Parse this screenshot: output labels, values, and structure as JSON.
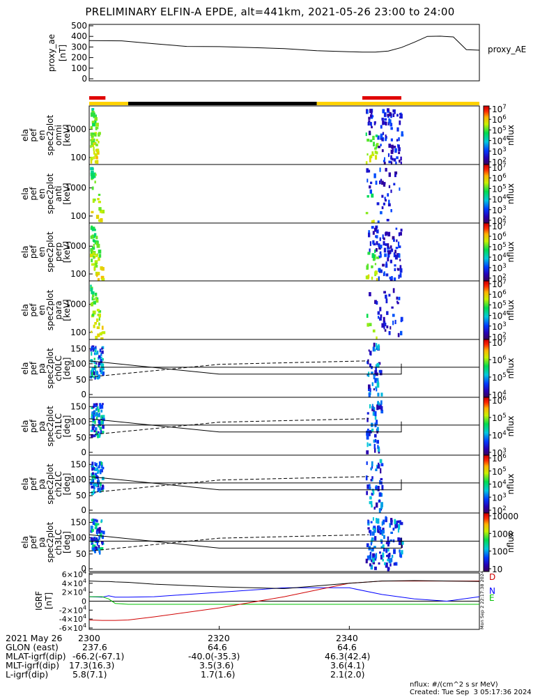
{
  "title": "PRELIMINARY ELFIN-A EPDE, alt=441km, 2021-05-26 23:00 to 24:00",
  "footer": {
    "units": "nflux: #/(cm^2 s sr MeV)",
    "created": "Created: Tue Sep  3 05:17:36 2024",
    "side_stamp": "Mon Sep  2 22:17:38 2024"
  },
  "colors": {
    "red_bar": "#e00000",
    "yellow_bar": "#ffd200",
    "black_bar": "#000000",
    "bx": "#0000ff",
    "by": "#00c000",
    "bz": "#d00000",
    "btot": "#000000"
  },
  "ticks_x": [
    "2300",
    "2320",
    "2340"
  ],
  "ephemeris": {
    "rows": [
      {
        "label": "2021 May 26",
        "values": [
          "2300",
          "2320",
          "2340"
        ]
      },
      {
        "label": "GLON (east)",
        "values": [
          "237.6",
          "64.6",
          "64.6"
        ]
      },
      {
        "label": "MLAT-igrf(dip)",
        "values": [
          "-66.2(-67.1)",
          "-40.0(-35.3)",
          "46.3(42.4)"
        ]
      },
      {
        "label": "MLT-igrf(dip)",
        "values": [
          "17.3(16.3)",
          "3.5(3.6)",
          "3.6(4.1)"
        ]
      },
      {
        "label": "L-igrf(dip)",
        "values": [
          "5.8(7.1)",
          "1.7(1.6)",
          "2.1(2.0)"
        ]
      }
    ]
  },
  "chart_data": [
    {
      "type": "line",
      "ylabel": [
        "proxy_ae",
        "[nT]"
      ],
      "legend": "proxy_AE",
      "ylim": [
        0,
        500
      ],
      "yticks": [
        "500",
        "400",
        "300",
        "200",
        "100",
        "0"
      ],
      "x": [
        2300,
        2305,
        2310,
        2315,
        2320,
        2325,
        2330,
        2335,
        2340,
        2342,
        2344,
        2346,
        2348,
        2350,
        2352,
        2354,
        2356,
        2358,
        2360
      ],
      "values": [
        360,
        358,
        330,
        305,
        303,
        295,
        285,
        265,
        255,
        252,
        251,
        262,
        295,
        345,
        400,
        402,
        395,
        275,
        270
      ]
    },
    {
      "type": "table",
      "name": "science-zone-bar",
      "segments": [
        {
          "from": 2300,
          "to": 2306,
          "color": "yellow"
        },
        {
          "from": 2306,
          "to": 2335,
          "color": "black"
        },
        {
          "from": 2335,
          "to": 2360,
          "color": "yellow"
        }
      ],
      "red_marks": [
        [
          2300,
          2302.5
        ],
        [
          2342,
          2348
        ]
      ]
    },
    {
      "type": "heatmap",
      "ylabel": [
        "ela",
        "pef",
        "en",
        "spec2plot",
        "omni",
        "[keV]"
      ],
      "yticks": [
        "1000",
        "100"
      ],
      "colorbar": {
        "label": "nflux",
        "ticks": [
          "10^2",
          "10^3",
          "10^4",
          "10^5",
          "10^6",
          "10^7"
        ]
      }
    },
    {
      "type": "heatmap",
      "ylabel": [
        "ela",
        "pef",
        "en",
        "spec2plot",
        "anti",
        "[keV]"
      ],
      "yticks": [
        "1000",
        "100"
      ],
      "colorbar": {
        "label": "nflux",
        "ticks": [
          "10^2",
          "10^3",
          "10^4",
          "10^5",
          "10^6",
          "10^7"
        ]
      }
    },
    {
      "type": "heatmap",
      "ylabel": [
        "ela",
        "pef",
        "en",
        "spec2plot",
        "perp",
        "[keV]"
      ],
      "yticks": [
        "1000",
        "100"
      ],
      "colorbar": {
        "label": "nflux",
        "ticks": [
          "10^2",
          "10^3",
          "10^4",
          "10^5",
          "10^6",
          "10^7"
        ]
      }
    },
    {
      "type": "heatmap",
      "ylabel": [
        "ela",
        "pef",
        "en",
        "spec2plot",
        "para",
        "[keV]"
      ],
      "yticks": [
        "1000",
        "100"
      ],
      "colorbar": {
        "label": "nflux",
        "ticks": [
          "10^2",
          "10^3",
          "10^4",
          "10^5",
          "10^6",
          "10^7"
        ]
      }
    },
    {
      "type": "heatmap",
      "ylabel": [
        "ela",
        "pef",
        "pa",
        "spec2plot",
        "ch0LC",
        "[deg]"
      ],
      "yticks": [
        "150",
        "100",
        "50",
        "0"
      ],
      "colorbar": {
        "label": "nflux",
        "ticks": [
          "10^4",
          "10^5",
          "10^6",
          "10^7"
        ]
      }
    },
    {
      "type": "heatmap",
      "ylabel": [
        "ela",
        "pef",
        "pa",
        "spec2plot",
        "ch1LC",
        "[deg]"
      ],
      "yticks": [
        "150",
        "100",
        "50",
        "0"
      ],
      "colorbar": {
        "label": "nflux",
        "ticks": [
          "10^3",
          "10^4",
          "10^5",
          "10^6"
        ]
      }
    },
    {
      "type": "heatmap",
      "ylabel": [
        "ela",
        "pef",
        "pa",
        "spec2plot",
        "ch2LC",
        "[deg]"
      ],
      "yticks": [
        "150",
        "100",
        "50",
        "0"
      ],
      "colorbar": {
        "label": "nflux",
        "ticks": [
          "10^2",
          "10^3",
          "10^4",
          "10^5",
          "10^6"
        ]
      }
    },
    {
      "type": "heatmap",
      "ylabel": [
        "ela",
        "pef",
        "pa",
        "spec2plot",
        "ch3LC",
        "[deg]"
      ],
      "yticks": [
        "150",
        "100",
        "50",
        "0"
      ],
      "colorbar": {
        "label": "nflux",
        "ticks": [
          "10",
          "100",
          "1000",
          "10000"
        ]
      }
    },
    {
      "type": "line",
      "ylabel": [
        "IGRF",
        "[nT]"
      ],
      "ylim": [
        -60000,
        60000
      ],
      "yticks": [
        "6×10^4",
        "4×10^4",
        "2×10^4",
        "0",
        "-2×10^4",
        "-4×10^4",
        "-6×10^4"
      ],
      "x": [
        2300,
        2302,
        2303,
        2304,
        2306,
        2310,
        2320,
        2330,
        2340,
        2345,
        2350,
        2355,
        2360
      ],
      "series": [
        {
          "name": "N",
          "color": "blue",
          "values": [
            10000,
            9000,
            12000,
            9000,
            9000,
            10000,
            20000,
            30000,
            30000,
            15000,
            5000,
            0,
            10000
          ]
        },
        {
          "name": "E",
          "color": "green",
          "values": [
            10000,
            10000,
            5000,
            -5000,
            -7000,
            -7000,
            -7000,
            -7000,
            -7000,
            -7000,
            -7000,
            -7000,
            -7000
          ]
        },
        {
          "name": "D",
          "color": "red",
          "values": [
            -42000,
            -43000,
            -43000,
            -43000,
            -42000,
            -35000,
            -15000,
            10000,
            40000,
            45000,
            45000,
            45000,
            45000
          ]
        },
        {
          "name": "",
          "color": "black",
          "values": [
            45000,
            44000,
            44000,
            43000,
            42000,
            38000,
            32000,
            28000,
            40000,
            45000,
            46000,
            45000,
            44000
          ]
        }
      ]
    }
  ]
}
